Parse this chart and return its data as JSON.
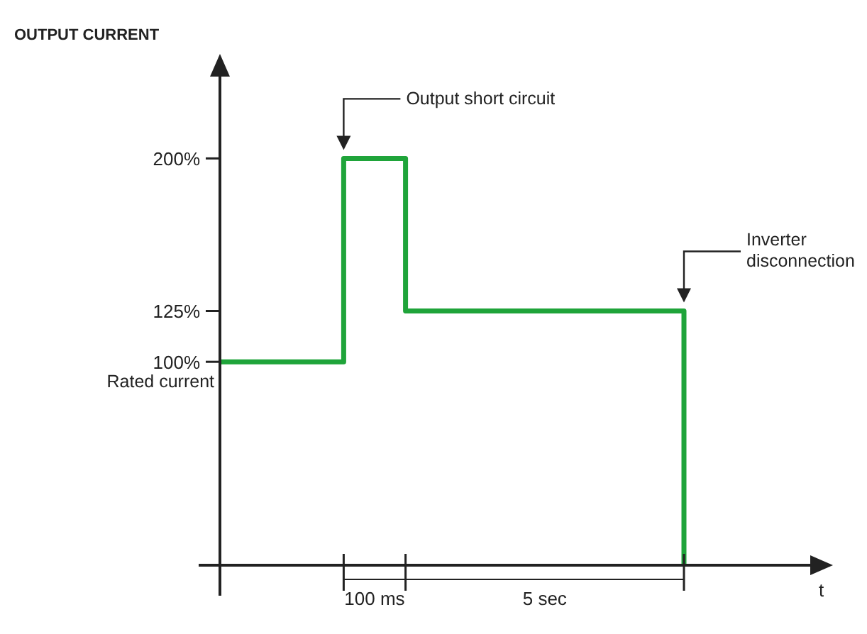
{
  "chart_data": {
    "type": "step",
    "ylabel": "OUTPUT CURRENT",
    "categories": [
      null,
      null,
      null,
      null,
      null,
      null,
      null,
      null,
      null,
      null,
      null,
      null,
      null,
      null,
      null,
      null
    ],
    "series": [
      {
        "color": "#1fa43a",
        "values": [
          100,
          100,
          100,
          100,
          200,
          200,
          125,
          125,
          125,
          125,
          125,
          125,
          125,
          125,
          125,
          0
        ]
      }
    ],
    "ylim": [
      -15,
      250
    ],
    "yticks": [
      {
        "value": 100,
        "label": "100%"
      },
      {
        "value": 125,
        "label": "125%"
      },
      {
        "value": 200,
        "label": "200%"
      }
    ],
    "grid": false,
    "annotations": [
      "Output short circuit",
      "Inverter disconnection",
      "Rated current",
      "100 ms",
      "5 sec",
      "t"
    ]
  }
}
